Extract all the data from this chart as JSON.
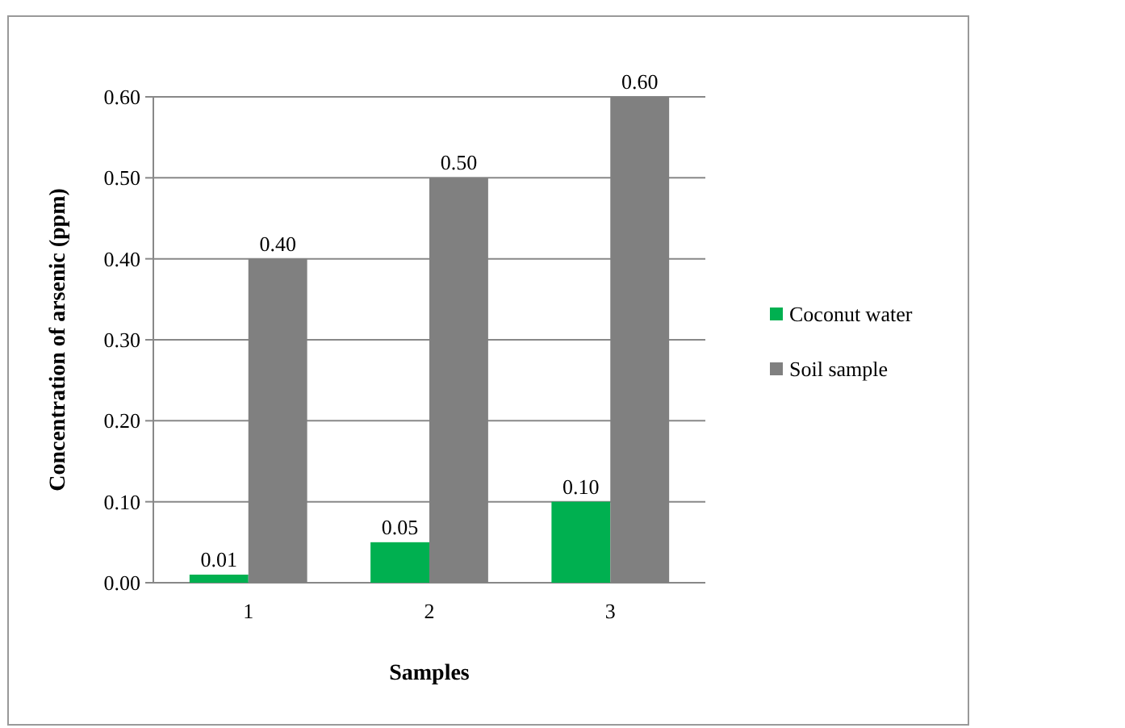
{
  "chart_data": {
    "type": "bar",
    "xlabel": "Samples",
    "ylabel": "Concentration of arsenic (ppm)",
    "categories": [
      "1",
      "2",
      "3"
    ],
    "series": [
      {
        "name": "Coconut water",
        "color": "#00b050",
        "values": [
          0.01,
          0.05,
          0.1
        ],
        "value_labels": [
          "0.01",
          "0.05",
          "0.10"
        ]
      },
      {
        "name": "Soil sample",
        "color": "#808080",
        "values": [
          0.4,
          0.5,
          0.6
        ],
        "value_labels": [
          "0.40",
          "0.50",
          "0.60"
        ]
      }
    ],
    "ylim": [
      0,
      0.6
    ],
    "yticks": [
      {
        "value": 0,
        "label": "0.00"
      },
      {
        "value": 0.1,
        "label": "0.10"
      },
      {
        "value": 0.2,
        "label": "0.20"
      },
      {
        "value": 0.3,
        "label": "0.30"
      },
      {
        "value": 0.4,
        "label": "0.40"
      },
      {
        "value": 0.5,
        "label": "0.50"
      },
      {
        "value": 0.6,
        "label": "0.60"
      }
    ],
    "grid": "y",
    "legend": "right"
  }
}
